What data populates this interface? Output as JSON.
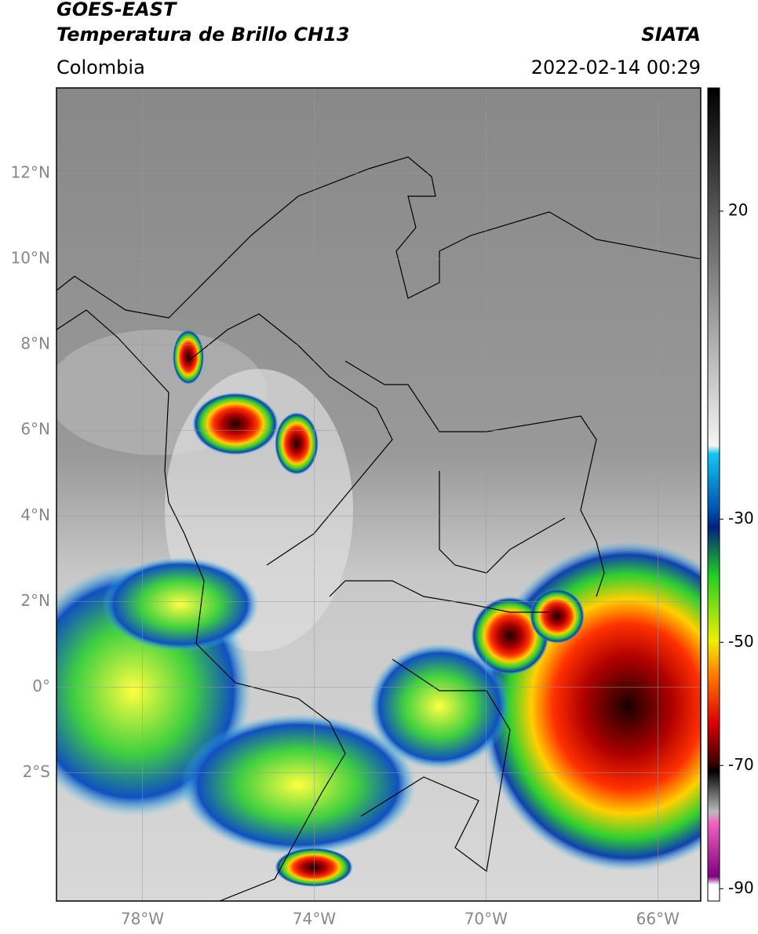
{
  "header": {
    "title": "GOES-EAST",
    "subtitle": "Temperatura de Brillo CH13",
    "source": "SIATA",
    "region": "Colombia",
    "datetime": "2022-02-14 00:29"
  },
  "map": {
    "lon_lim": [
      -80,
      -65
    ],
    "lat_lim": [
      -5,
      14
    ],
    "lat_ticks": [
      {
        "value": 12,
        "label": "12°N"
      },
      {
        "value": 10,
        "label": "10°N"
      },
      {
        "value": 8,
        "label": "8°N"
      },
      {
        "value": 6,
        "label": "6°N"
      },
      {
        "value": 4,
        "label": "4°N"
      },
      {
        "value": 2,
        "label": "2°N"
      },
      {
        "value": 0,
        "label": "0°"
      },
      {
        "value": -2,
        "label": "2°S"
      }
    ],
    "lon_ticks": [
      {
        "value": -78,
        "label": "78°W"
      },
      {
        "value": -74,
        "label": "74°W"
      },
      {
        "value": -70,
        "label": "70°W"
      },
      {
        "value": -66,
        "label": "66°W"
      }
    ]
  },
  "colorbar": {
    "range": [
      -92,
      40
    ],
    "ticks": [
      20,
      -30,
      -50,
      -70,
      -90
    ]
  }
}
